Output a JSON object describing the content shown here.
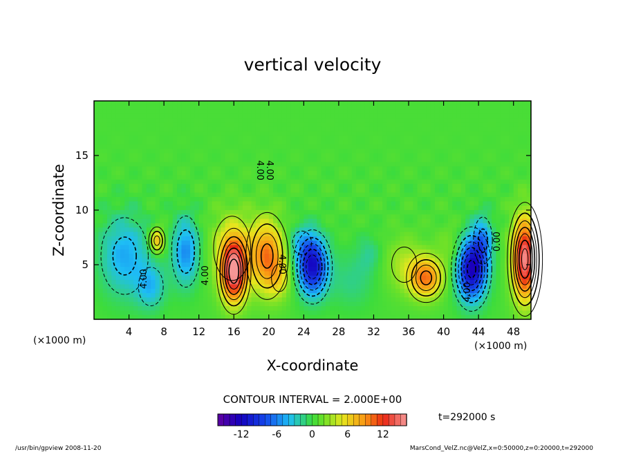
{
  "chart_data": {
    "type": "heatmap",
    "title": "vertical velocity",
    "xlabel": "X-coordinate",
    "ylabel": "Z-coordinate",
    "x_unit": "(×1000 m)",
    "y_unit": "(×1000 m)",
    "xlim": [
      0,
      50
    ],
    "ylim": [
      0,
      20
    ],
    "x_ticks": [
      "4",
      "8",
      "12",
      "16",
      "20",
      "24",
      "28",
      "32",
      "36",
      "40",
      "44",
      "48"
    ],
    "y_ticks": [
      "5",
      "10",
      "15"
    ],
    "contour_interval_text": "CONTOUR INTERVAL = 2.000E+00",
    "contour_labels": [
      "4.00",
      "4.00",
      "4.00",
      "4.00",
      "4.00",
      "0.00",
      "4.00"
    ],
    "time_text": "t=292000 s",
    "colorbar": {
      "min": -16,
      "max": 16,
      "tick_labels": [
        "-12",
        "-6",
        "0",
        "6",
        "12"
      ],
      "tick_values": [
        -12,
        -6,
        0,
        6,
        12
      ]
    },
    "anomalies": [
      {
        "x": 3.5,
        "z": 5.8,
        "value": -5,
        "sx": 2.0,
        "sz": 2.6
      },
      {
        "x": 6.5,
        "z": 3.0,
        "value": -4,
        "sx": 1.2,
        "sz": 1.5
      },
      {
        "x": 10.5,
        "z": 6.2,
        "value": -6,
        "sx": 1.1,
        "sz": 2.2
      },
      {
        "x": 7.2,
        "z": 7.2,
        "value": 7,
        "sx": 0.6,
        "sz": 0.8
      },
      {
        "x": 16.0,
        "z": 4.4,
        "value": 14,
        "sx": 1.0,
        "sz": 2.0
      },
      {
        "x": 15.8,
        "z": 6.5,
        "value": 4,
        "sx": 1.8,
        "sz": 2.5
      },
      {
        "x": 19.8,
        "z": 5.8,
        "value": 9,
        "sx": 1.4,
        "sz": 2.3
      },
      {
        "x": 21.2,
        "z": 3.8,
        "value": 3,
        "sx": 1.0,
        "sz": 1.4
      },
      {
        "x": 25.0,
        "z": 4.8,
        "value": -12,
        "sx": 1.2,
        "sz": 1.8
      },
      {
        "x": 23.8,
        "z": 7.0,
        "value": -3,
        "sx": 1.2,
        "sz": 1.2
      },
      {
        "x": 29.5,
        "z": 3.5,
        "value": -2,
        "sx": 1.8,
        "sz": 1.8
      },
      {
        "x": 31.5,
        "z": 6.0,
        "value": -2,
        "sx": 1.0,
        "sz": 1.2
      },
      {
        "x": 38.0,
        "z": 3.8,
        "value": 9,
        "sx": 1.3,
        "sz": 1.3
      },
      {
        "x": 35.5,
        "z": 5.0,
        "value": 3,
        "sx": 1.6,
        "sz": 1.8
      },
      {
        "x": 43.2,
        "z": 4.6,
        "value": -13,
        "sx": 1.2,
        "sz": 2.0
      },
      {
        "x": 44.5,
        "z": 7.2,
        "value": -5,
        "sx": 0.8,
        "sz": 1.6
      },
      {
        "x": 49.3,
        "z": 5.5,
        "value": 15,
        "sx": 1.0,
        "sz": 2.6
      },
      {
        "x": 41.0,
        "z": 6.5,
        "value": 2,
        "sx": 1.2,
        "sz": 1.5
      }
    ]
  },
  "footer": {
    "left": "/usr/bin/gpview   2008-11-20",
    "right": "MarsCond_VelZ.nc@VelZ,x=0:50000,z=0:20000,t=292000"
  }
}
